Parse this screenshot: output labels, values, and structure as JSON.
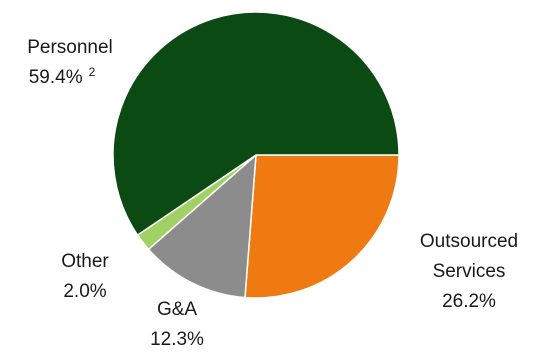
{
  "chart_data": {
    "type": "pie",
    "title": "",
    "start_angle_deg": 0,
    "direction": "clockwise",
    "slices": [
      {
        "name": "Outsourced Services",
        "label_lines": [
          "Outsourced",
          "Services"
        ],
        "value_label": "26.2%",
        "value": 26.2,
        "color": "#f07a12"
      },
      {
        "name": "G&A",
        "label_lines": [
          "G&A"
        ],
        "value_label": "12.3%",
        "value": 12.3,
        "color": "#8c8c8c"
      },
      {
        "name": "Other",
        "label_lines": [
          "Other"
        ],
        "value_label": "2.0%",
        "value": 2.0,
        "color": "#9fd164"
      },
      {
        "name": "Personnel",
        "label_lines": [
          "Personnel"
        ],
        "value_label": "59.4%",
        "value": 59.4,
        "color": "#0c4a14",
        "footnote": "2"
      }
    ]
  }
}
